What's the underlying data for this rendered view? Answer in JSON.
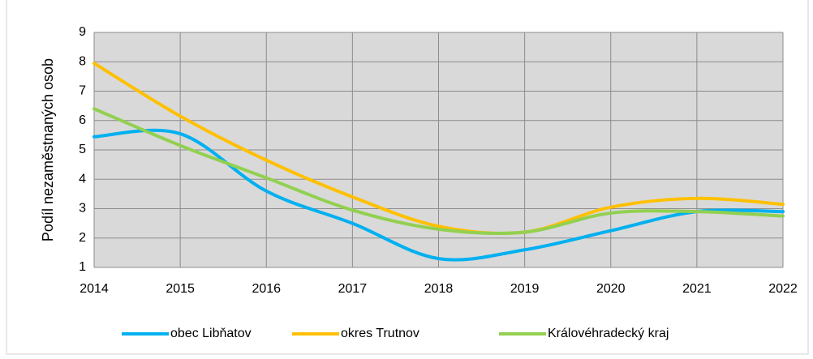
{
  "chart_data": {
    "type": "line",
    "y_label": "Podíl nezaměstnaných osob",
    "x": [
      2014,
      2015,
      2016,
      2017,
      2018,
      2019,
      2020,
      2021,
      2022
    ],
    "xlim": [
      2014,
      2022
    ],
    "xticks": [
      2014,
      2015,
      2016,
      2017,
      2018,
      2019,
      2020,
      2021,
      2022
    ],
    "ylim": [
      1,
      9
    ],
    "yticks": [
      1,
      2,
      3,
      4,
      5,
      6,
      7,
      8,
      9
    ],
    "grid": true,
    "smooth": true,
    "legend": "bottom",
    "series": [
      {
        "name": "obec Libňatov",
        "color": "#00b0f0",
        "values": [
          5.45,
          5.55,
          3.6,
          2.5,
          1.3,
          1.6,
          2.25,
          2.9,
          2.9
        ]
      },
      {
        "name": "okres Trutnov",
        "color": "#ffc000",
        "values": [
          7.95,
          6.15,
          4.65,
          3.4,
          2.4,
          2.2,
          3.05,
          3.35,
          3.15
        ]
      },
      {
        "name": "Královéhradecký kraj",
        "color": "#92d050",
        "values": [
          6.4,
          5.15,
          4.05,
          2.95,
          2.3,
          2.2,
          2.85,
          2.9,
          2.75
        ]
      }
    ]
  }
}
